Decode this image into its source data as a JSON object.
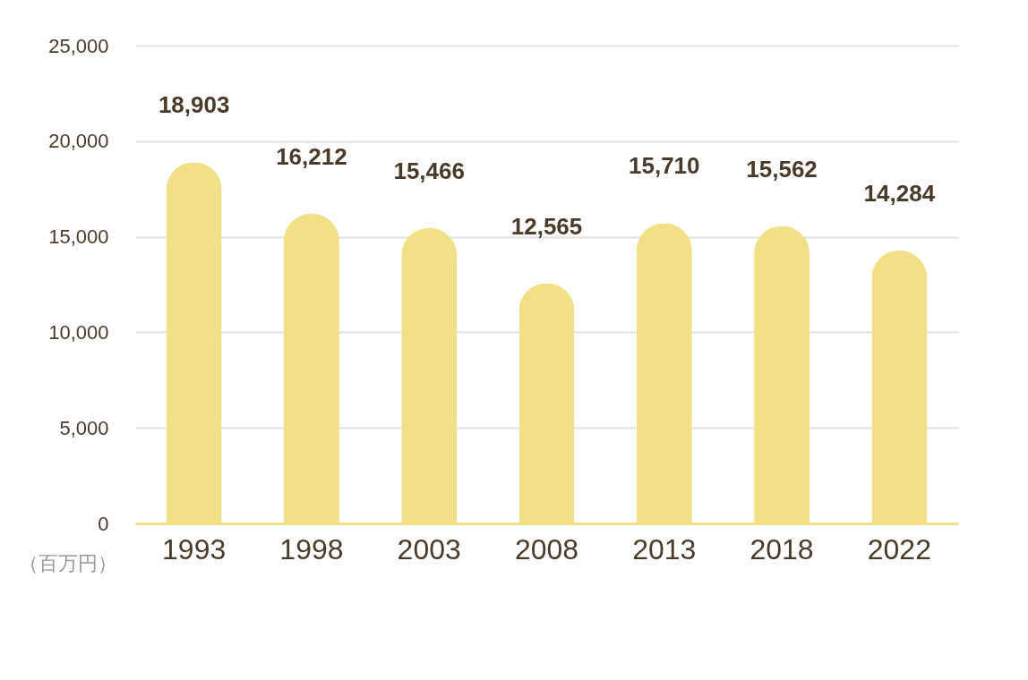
{
  "chart_data": {
    "type": "bar",
    "categories": [
      "1993",
      "1998",
      "2003",
      "2008",
      "2013",
      "2018",
      "2022"
    ],
    "values": [
      18903,
      16212,
      15466,
      12565,
      15710,
      15562,
      14284
    ],
    "color": "#f2e087",
    "ylabel": "（百万円）",
    "ylim": [
      0,
      25000
    ],
    "yticks": [
      {
        "value": 0,
        "label": "0"
      },
      {
        "value": 5000,
        "label": "5,000"
      },
      {
        "value": 10000,
        "label": "10,000"
      },
      {
        "value": 15000,
        "label": "15,000"
      },
      {
        "value": 20000,
        "label": "20,000"
      },
      {
        "value": 25000,
        "label": "25,000"
      }
    ],
    "grid": "y",
    "value_labels": [
      "18,903",
      "16,212",
      "15,466",
      "12,565",
      "15,710",
      "15,562",
      "14,284"
    ]
  }
}
